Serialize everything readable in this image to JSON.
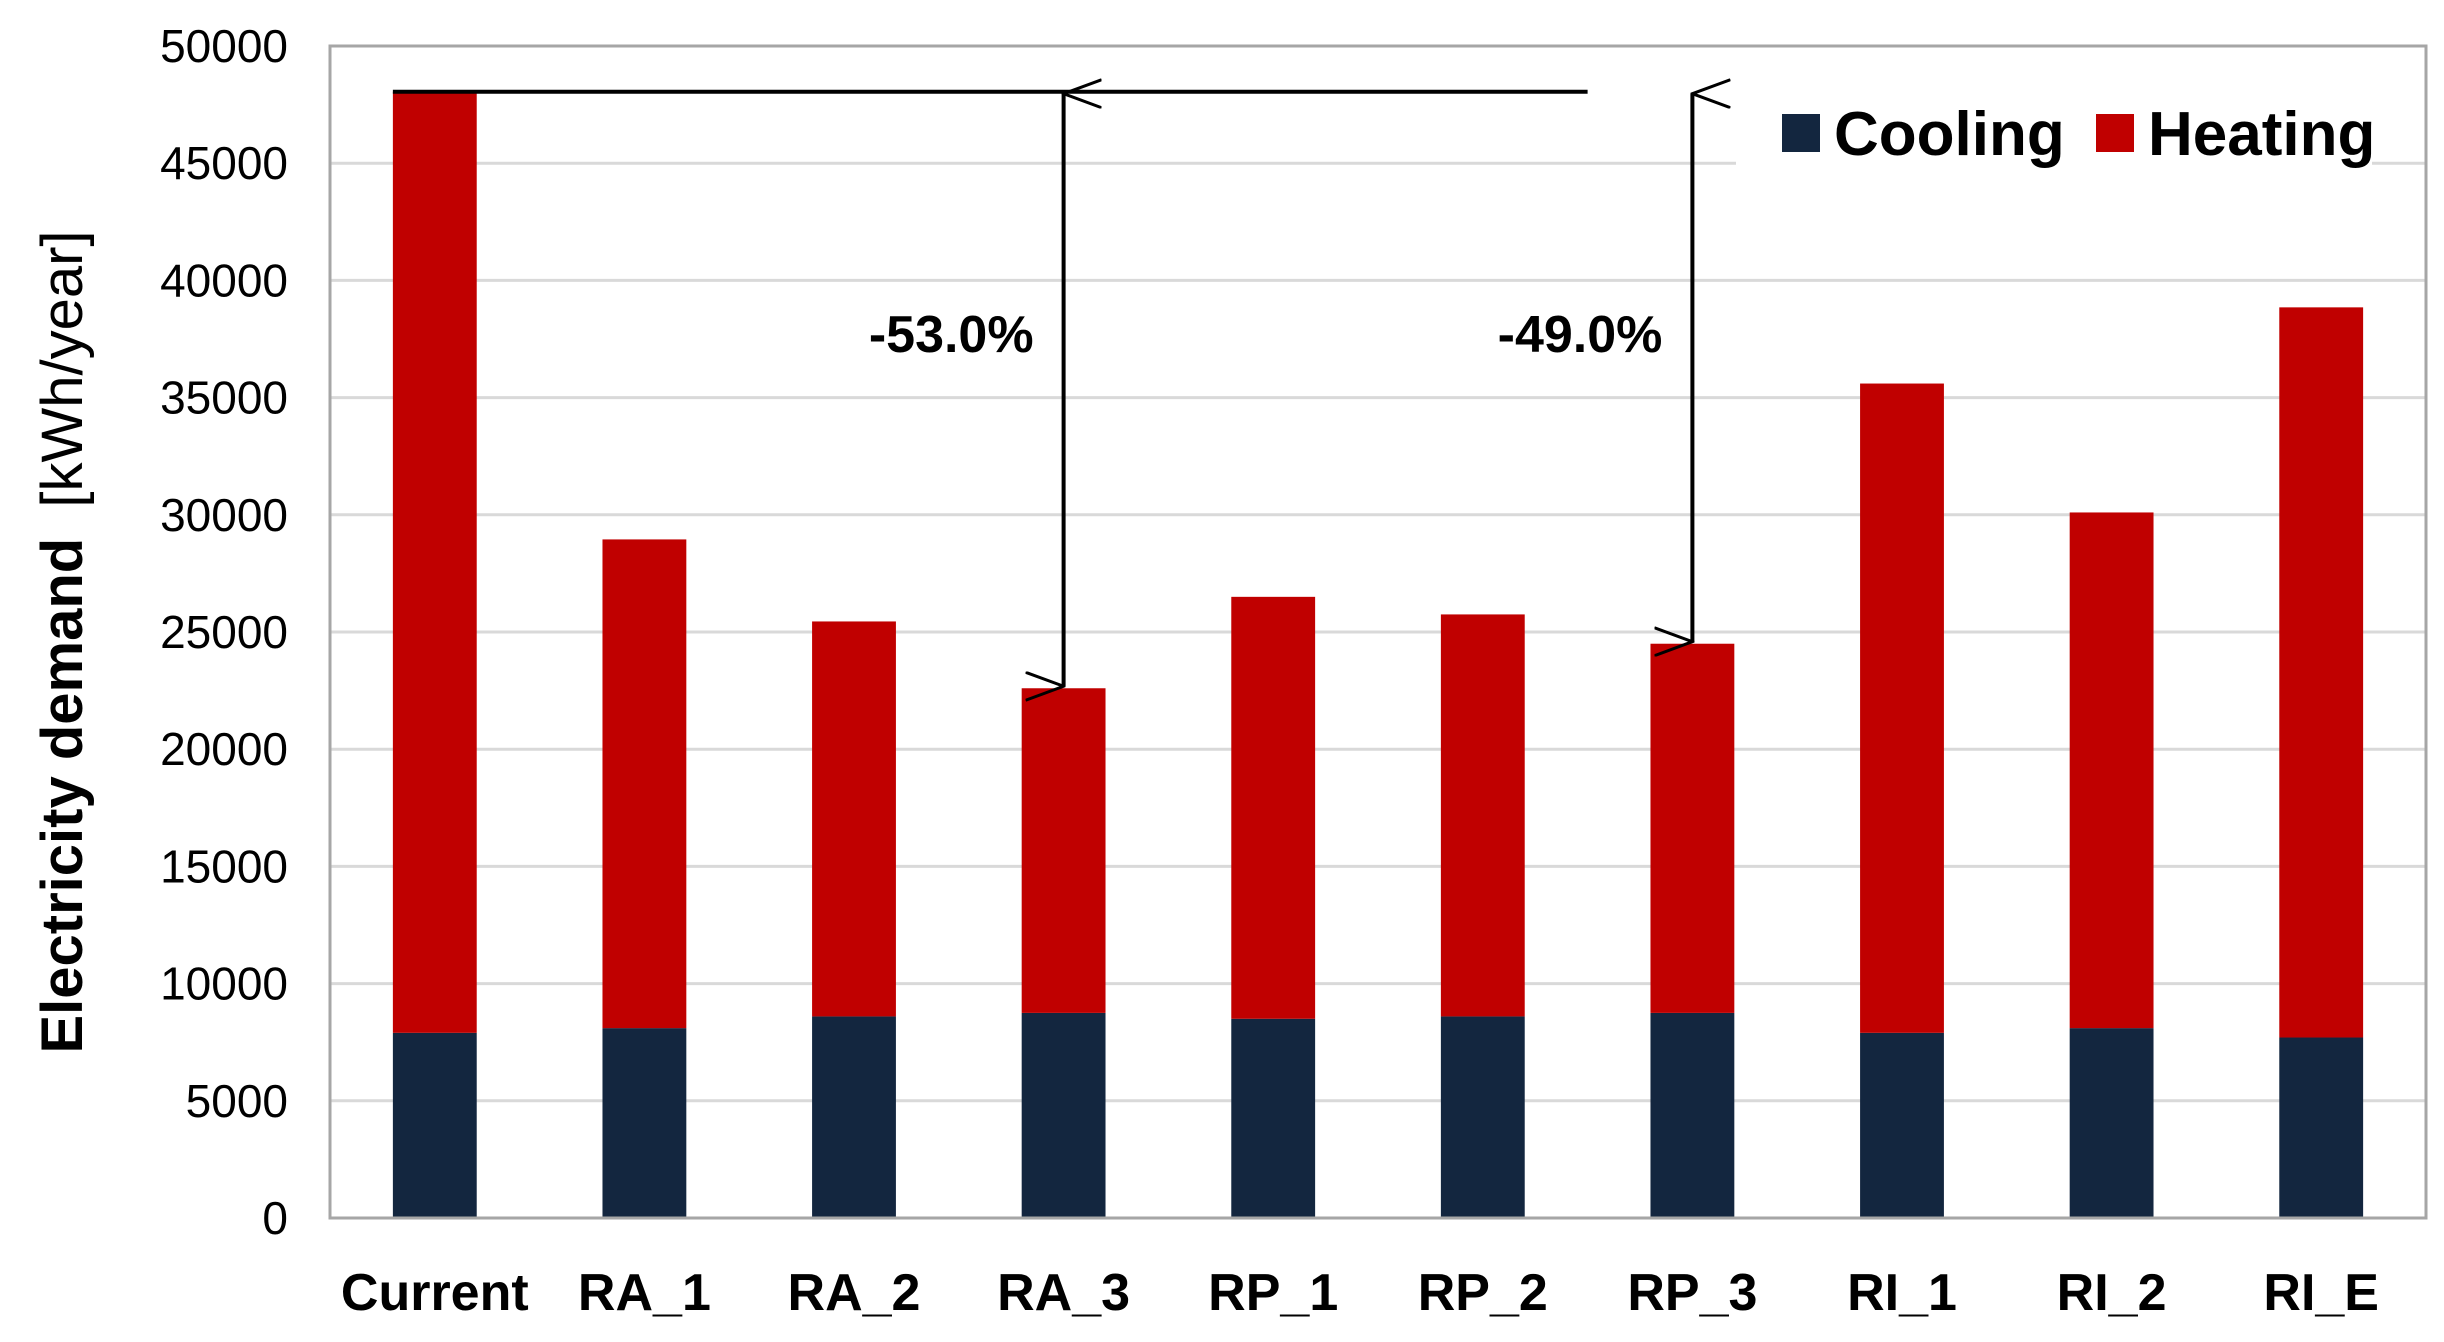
{
  "chart_data": {
    "type": "bar",
    "stacked": true,
    "title": "",
    "xlabel": "",
    "ylabel_bold": "Electricity demand",
    "ylabel_unit": "[kWh/year]",
    "ylim": [
      0,
      50000
    ],
    "yticks": [
      "0",
      "5000",
      "10000",
      "15000",
      "20000",
      "25000",
      "30000",
      "35000",
      "40000",
      "45000",
      "50000"
    ],
    "categories": [
      "Current",
      "RA_1",
      "RA_2",
      "RA_3",
      "RP_1",
      "RP_2",
      "RP_3",
      "RI_1",
      "RI_2",
      "RI_E"
    ],
    "series": [
      {
        "name": "Cooling",
        "color": "#13263f",
        "values": [
          7900,
          8100,
          8600,
          8750,
          8500,
          8600,
          8750,
          7900,
          8100,
          7700
        ]
      },
      {
        "name": "Heating",
        "color": "#c00000",
        "values": [
          40150,
          20850,
          16850,
          13850,
          18000,
          17150,
          15750,
          27700,
          22000,
          31150
        ]
      }
    ],
    "legend": {
      "position": "top-right",
      "items": [
        "Cooling",
        "Heating"
      ]
    },
    "grid": true,
    "annotations": [
      {
        "label": "-53.0%",
        "from_value": 48050,
        "to_value": 22600,
        "category": "RA_3"
      },
      {
        "label": "-49.0%",
        "from_value": 48050,
        "to_value": 24500,
        "category": "RP_3"
      }
    ],
    "reference_line_value": 48050
  }
}
